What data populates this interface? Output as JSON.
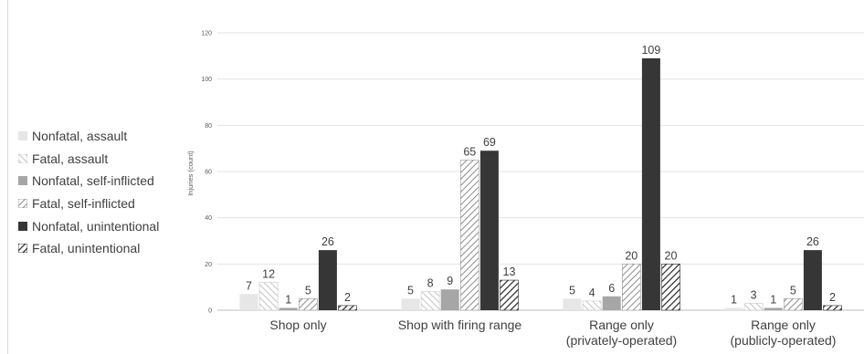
{
  "chart_data": {
    "type": "bar",
    "categories": [
      [
        "Shop only"
      ],
      [
        "Shop with firing range"
      ],
      [
        "Range only",
        "(privately-operated)"
      ],
      [
        "Range only",
        "(publicly-operated)"
      ]
    ],
    "series": [
      {
        "name": "Nonfatal, assault",
        "values": [
          7,
          5,
          5,
          1
        ],
        "color": "#e6e6e6",
        "pattern": "solid"
      },
      {
        "name": "Fatal, assault",
        "values": [
          12,
          8,
          4,
          3
        ],
        "color": "#c8c8c8",
        "pattern": "light-hatch"
      },
      {
        "name": "Nonfatal, self-inflicted",
        "values": [
          1,
          9,
          6,
          1
        ],
        "color": "#a6a6a6",
        "pattern": "solid"
      },
      {
        "name": "Fatal, self-inflicted",
        "values": [
          5,
          65,
          20,
          5
        ],
        "color": "#9a9a9a",
        "pattern": "medium-hatch"
      },
      {
        "name": "Nonfatal, unintentional",
        "values": [
          26,
          69,
          109,
          26
        ],
        "color": "#363636",
        "pattern": "solid"
      },
      {
        "name": "Fatal, unintentional",
        "values": [
          2,
          13,
          20,
          2
        ],
        "color": "#262626",
        "pattern": "dark-hatch"
      }
    ],
    "ylabel": "Injuries (count)",
    "xlabel": "",
    "title": "",
    "ylim": [
      0,
      120
    ],
    "yticks": [
      0,
      20,
      40,
      60,
      80,
      100,
      120
    ],
    "grid": true,
    "legend": "left"
  }
}
